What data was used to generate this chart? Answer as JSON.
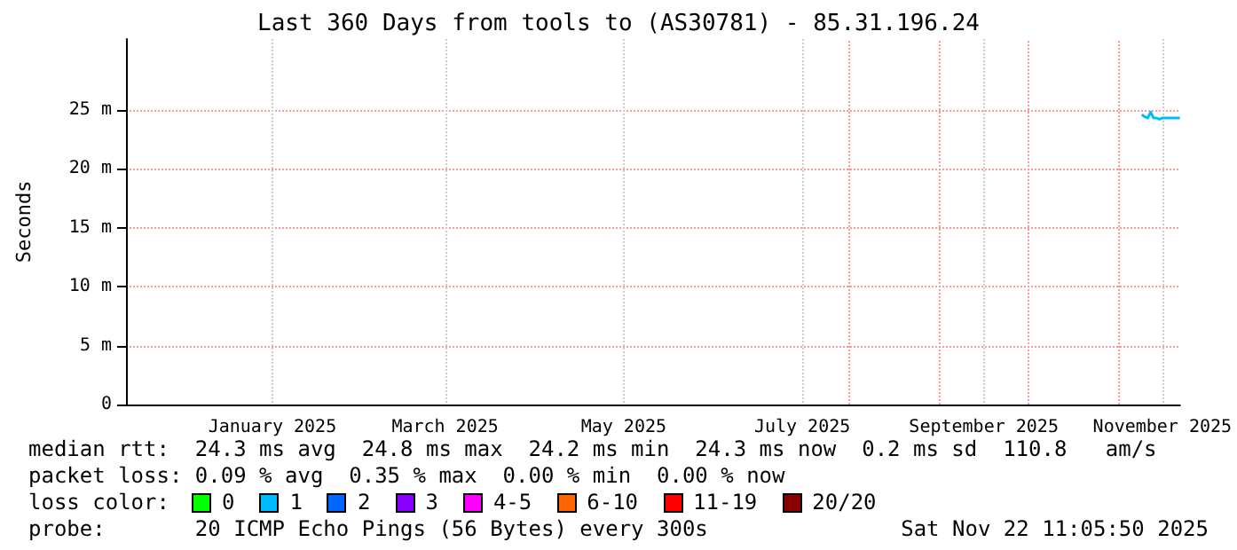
{
  "chart_data": {
    "type": "line",
    "title": "Last 360 Days from tools to (AS30781) - 85.31.196.24",
    "ylabel": "Seconds",
    "x": [
      "2025-11-09",
      "2025-11-10",
      "2025-11-11",
      "2025-11-12",
      "2025-11-13",
      "2025-11-14",
      "2025-11-15",
      "2025-11-16",
      "2025-11-17",
      "2025-11-18",
      "2025-11-19",
      "2025-11-20",
      "2025-11-21",
      "2025-11-22"
    ],
    "series": [
      {
        "color": "#00bbff",
        "values": [
          24.6,
          24.4,
          24.3,
          24.8,
          24.3,
          24.3,
          24.2,
          24.3,
          24.3,
          24.3,
          24.3,
          24.3,
          24.3,
          24.3
        ]
      }
    ],
    "xlim": [
      "2024-11-27",
      "2025-11-22"
    ],
    "xticks": [
      {
        "value": "2025-01-16",
        "label": "January 2025"
      },
      {
        "value": "2025-03-16",
        "label": "March 2025"
      },
      {
        "value": "2025-05-16",
        "label": "May 2025"
      },
      {
        "value": "2025-07-16",
        "label": "July 2025"
      },
      {
        "value": "2025-09-16",
        "label": "September 2025"
      },
      {
        "value": "2025-11-16",
        "label": "November 2025"
      }
    ],
    "ylim": [
      0,
      31
    ],
    "yticks": [
      0,
      {
        "value": 5,
        "label": "5 m"
      },
      {
        "value": 10,
        "label": "10 m"
      },
      {
        "value": 15,
        "label": "15 m"
      },
      {
        "value": 20,
        "label": "20 m"
      },
      {
        "value": 25,
        "label": "25 m"
      }
    ],
    "ref_lines": [
      {
        "axis": "x",
        "value": "2025-08-01",
        "color": "#ff9999",
        "line_style": "dotted"
      },
      {
        "axis": "x",
        "value": "2025-09-01",
        "color": "#ff9999",
        "line_style": "dotted"
      },
      {
        "axis": "x",
        "value": "2025-10-01",
        "color": "#ff9999",
        "line_style": "dotted"
      },
      {
        "axis": "x",
        "value": "2025-11-01",
        "color": "#ff9999",
        "line_style": "dotted"
      }
    ],
    "grid": true,
    "marker": "none",
    "line_style": "solid",
    "annotations": [
      "median rtt:  24.3 ms avg  24.8 ms max  24.2 ms min  24.3 ms now  0.2 ms sd  110.8   am/s",
      "packet loss: 0.09 % avg  0.35 % max  0.00 % min  0.00 % now",
      "loss color:",
      "0",
      "1",
      "2",
      "3",
      "4-5",
      "6-10",
      "11-19",
      "20/20",
      "probe:       20 ICMP Echo Pings (56 Bytes) every 300s",
      "Sat Nov 22 11:05:50 2025"
    ]
  }
}
